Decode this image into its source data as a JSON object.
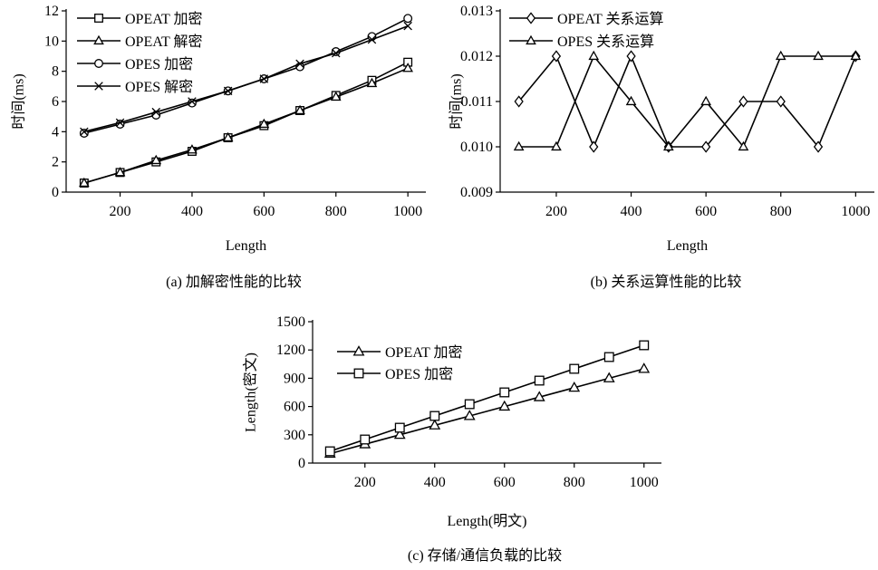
{
  "chart_data": [
    {
      "id": "a",
      "type": "line",
      "caption": "(a)  加解密性能的比较",
      "xlabel": "Length",
      "ylabel": "时间(ms)",
      "xlim": [
        50,
        1050
      ],
      "ylim": [
        0,
        12
      ],
      "xticks": [
        200,
        400,
        600,
        800,
        1000
      ],
      "yticks": [
        0,
        2,
        4,
        6,
        8,
        10,
        12
      ],
      "x": [
        100,
        200,
        300,
        400,
        500,
        600,
        700,
        800,
        900,
        1000
      ],
      "legend": "top-left",
      "series": [
        {
          "name": "OPEAT 加密",
          "marker": "square",
          "values": [
            0.6,
            1.3,
            2.0,
            2.7,
            3.6,
            4.4,
            5.4,
            6.4,
            7.4,
            8.6
          ]
        },
        {
          "name": "OPEAT 解密",
          "marker": "triangle",
          "values": [
            0.6,
            1.3,
            2.1,
            2.8,
            3.6,
            4.5,
            5.4,
            6.3,
            7.2,
            8.2
          ]
        },
        {
          "name": "OPES 加密",
          "marker": "circle",
          "values": [
            3.9,
            4.5,
            5.1,
            5.9,
            6.7,
            7.5,
            8.3,
            9.3,
            10.3,
            11.5
          ]
        },
        {
          "name": "OPES 解密",
          "marker": "x",
          "values": [
            4.0,
            4.6,
            5.3,
            6.0,
            6.7,
            7.5,
            8.5,
            9.2,
            10.1,
            11.0
          ]
        }
      ]
    },
    {
      "id": "b",
      "type": "line",
      "caption": "(b)  关系运算性能的比较",
      "xlabel": "Length",
      "ylabel": "时间(ms)",
      "xlim": [
        50,
        1050
      ],
      "ylim": [
        0.009,
        0.013
      ],
      "xticks": [
        200,
        400,
        600,
        800,
        1000
      ],
      "yticks": [
        "0.009",
        "0.010",
        "0.011",
        "0.012",
        "0.013"
      ],
      "x": [
        100,
        200,
        300,
        400,
        500,
        600,
        700,
        800,
        900,
        1000
      ],
      "legend": "top-left",
      "series": [
        {
          "name": "OPEAT 关系运算",
          "marker": "diamond",
          "values": [
            0.011,
            0.012,
            0.01,
            0.012,
            0.01,
            0.01,
            0.011,
            0.011,
            0.01,
            0.012
          ]
        },
        {
          "name": "OPES 关系运算",
          "marker": "triangle",
          "values": [
            0.01,
            0.01,
            0.012,
            0.011,
            0.01,
            0.011,
            0.01,
            0.012,
            0.012,
            0.012
          ]
        }
      ]
    },
    {
      "id": "c",
      "type": "line",
      "caption": "(c)  存储/通信负载的比较",
      "xlabel": "Length(明文)",
      "ylabel": "Length(密文)",
      "xlim": [
        50,
        1050
      ],
      "ylim": [
        0,
        1500
      ],
      "xticks": [
        200,
        400,
        600,
        800,
        1000
      ],
      "yticks": [
        0,
        300,
        600,
        900,
        1200,
        1500
      ],
      "x": [
        100,
        200,
        300,
        400,
        500,
        600,
        700,
        800,
        900,
        1000
      ],
      "legend": "top-left",
      "series": [
        {
          "name": "OPEAT 加密",
          "marker": "triangle",
          "values": [
            100,
            200,
            300,
            400,
            500,
            600,
            700,
            800,
            900,
            1000
          ]
        },
        {
          "name": "OPES 加密",
          "marker": "square",
          "values": [
            125,
            250,
            375,
            500,
            625,
            750,
            875,
            1000,
            1125,
            1250
          ]
        }
      ]
    }
  ]
}
